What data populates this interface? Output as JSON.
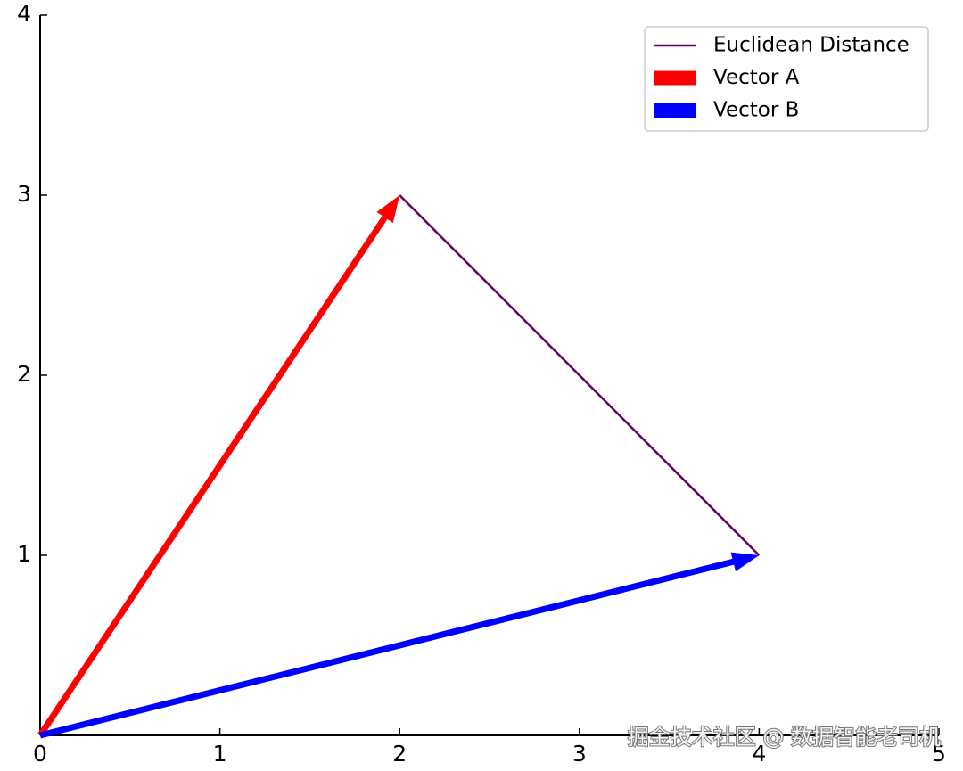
{
  "chart_data": {
    "type": "vector",
    "xlim": [
      0,
      5
    ],
    "ylim": [
      0,
      4
    ],
    "xticks": [
      0,
      1,
      2,
      3,
      4,
      5
    ],
    "yticks": [
      1,
      2,
      3,
      4
    ],
    "legend": "upper right",
    "series": [
      {
        "name": "Euclidean Distance",
        "kind": "line",
        "color": "#660066",
        "x": [
          2,
          4
        ],
        "y": [
          3,
          1
        ]
      },
      {
        "name": "Vector A",
        "kind": "arrow",
        "color": "#ff0000",
        "x": [
          0,
          2
        ],
        "y": [
          0,
          3
        ]
      },
      {
        "name": "Vector B",
        "kind": "arrow",
        "color": "#0000ff",
        "x": [
          0,
          4
        ],
        "y": [
          0,
          1
        ]
      }
    ],
    "watermark": "掘金技术社区 @ 数据智能老司机"
  }
}
